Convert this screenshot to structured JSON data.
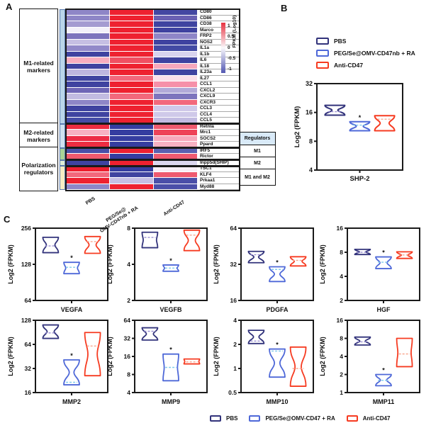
{
  "colors": {
    "navy": "#32337b",
    "blue": "#4e68d8",
    "red": "#f63b21",
    "navy_median": "#9a8fd2",
    "blue_median": "#7fcbec",
    "red_median": "#f9a78f",
    "frame": "#1a1a1a",
    "regulators_header_bg": "#d9eaf8"
  },
  "panel_a": {
    "label": "A",
    "left_boxes": [
      {
        "lines": [
          "M1-related",
          "markers"
        ],
        "row_start": 0,
        "row_end": 19
      },
      {
        "lines": [
          "M2-related",
          "markers"
        ],
        "row_start": 19,
        "row_end": 23
      },
      {
        "lines": [
          "Polarization",
          "regulators"
        ],
        "row_start": 23,
        "row_end": 30
      }
    ],
    "strip_groups": [
      {
        "rows": 19,
        "color": "#b9d5e9"
      },
      {
        "rows": 4,
        "color": "#cfe2f0"
      },
      {
        "rows": 2,
        "color": "#a9d396"
      },
      {
        "rows": 1,
        "color": "#dfeed6"
      },
      {
        "rows": 4,
        "color": "#f6edc3"
      }
    ],
    "col_labels": {
      "c1": "PBS",
      "c2_line1": "PEG/Se@",
      "c2_line2": "OMV-CD47nb + RA",
      "c3": "Anti-CD47"
    },
    "colorbar": {
      "title": "FPKM (Log10)",
      "ticks": [
        "1",
        "0.5",
        "0",
        "-0.5",
        "-1"
      ],
      "top_color": "#e73240",
      "mid_color": "#faf9fc",
      "bottom_color": "#5257b2"
    },
    "regulators_table": {
      "header": "Regulators",
      "rows": [
        "M1",
        "M2",
        "M1 and M2"
      ]
    }
  },
  "panel_b": {
    "label": "B",
    "legend": [
      {
        "label": "PBS",
        "color_key": "navy"
      },
      {
        "label": "PEG/Se@OMV-CD47nb + RA",
        "color_key": "blue"
      },
      {
        "label": "Anti-CD47",
        "color_key": "red"
      }
    ]
  },
  "panel_c": {
    "label": "C",
    "legend": [
      {
        "label": "PBS",
        "color_key": "navy"
      },
      {
        "label": "PEG/Se@OMV-CD47 + RA",
        "color_key": "blue"
      },
      {
        "label": "Anti-CD47",
        "color_key": "red"
      }
    ]
  },
  "chart_data": [
    {
      "id": "heatmap",
      "panel": "A",
      "type": "heatmap",
      "columns": [
        "PBS",
        "PEG/Se@OMV-CD47nb + RA",
        "Anti-CD47"
      ],
      "colorbar_label": "FPKM (Log10)",
      "colorbar_range": [
        1,
        -1
      ],
      "row_groups": [
        "M1-related markers x19",
        "M2-related markers x4",
        "Regulators M1 x2",
        "Regulators M2 x1",
        "Regulators M1 and M2 x4"
      ],
      "rows": [
        {
          "gene": "CD80",
          "colors": [
            "#8e86c7",
            "#ee2130",
            "#4347a2"
          ]
        },
        {
          "gene": "CD86",
          "colors": [
            "#8e86c7",
            "#ee2130",
            "#6a61b3"
          ]
        },
        {
          "gene": "CD38",
          "colors": [
            "#a49bd1",
            "#ee2130",
            "#3f43a0"
          ]
        },
        {
          "gene": "Marco",
          "colors": [
            "#f3f1f9",
            "#ee2130",
            "#3f43a0"
          ]
        },
        {
          "gene": "FRP2",
          "colors": [
            "#7d74bd",
            "#ee2130",
            "#8e86c7"
          ]
        },
        {
          "gene": "NOS2",
          "colors": [
            "#c6bfe3",
            "#ee2130",
            "#3f43a0"
          ]
        },
        {
          "gene": "IL1a",
          "colors": [
            "#9289c9",
            "#ee2130",
            "#434ba4"
          ]
        },
        {
          "gene": "IL1b",
          "colors": [
            "#3f43a0",
            "#ee2130",
            "#d8d3ee"
          ]
        },
        {
          "gene": "IL6",
          "colors": [
            "#f7aebf",
            "#f04f62",
            "#3f43a0"
          ]
        },
        {
          "gene": "IL18",
          "colors": [
            "#3f43a0",
            "#ee2130",
            "#f7a8bc"
          ]
        },
        {
          "gene": "IL23a",
          "colors": [
            "#beb6df",
            "#ee2130",
            "#3f43a0"
          ]
        },
        {
          "gene": "IL27",
          "colors": [
            "#3f43a0",
            "#f2687c",
            "#fbdfe9"
          ]
        },
        {
          "gene": "CCL1",
          "colors": [
            "#3f43a0",
            "#ee2130",
            "#f690a9"
          ]
        },
        {
          "gene": "CXCL2",
          "colors": [
            "#6f66b6",
            "#ee2130",
            "#b2aad8"
          ]
        },
        {
          "gene": "CXCL9",
          "colors": [
            "#c2bbe1",
            "#f2687c",
            "#7d74bd"
          ]
        },
        {
          "gene": "CXCR3",
          "colors": [
            "#8e86c7",
            "#ee2130",
            "#f2687c"
          ]
        },
        {
          "gene": "CCL3",
          "colors": [
            "#3f43a0",
            "#ee2130",
            "#cfc9e9"
          ]
        },
        {
          "gene": "CCL4",
          "colors": [
            "#3f43a0",
            "#ee2130",
            "#cfc9e9"
          ]
        },
        {
          "gene": "CCL5",
          "colors": [
            "#464ca6",
            "#ee2130",
            "#c2bbe1"
          ]
        },
        {
          "gene": "Retnla",
          "colors": [
            "#ee2d41",
            "#353da0",
            "#ef5a6e"
          ]
        },
        {
          "gene": "Mrc1",
          "colors": [
            "#f7b1c2",
            "#353da0",
            "#ee4258"
          ]
        },
        {
          "gene": "SOCS2",
          "colors": [
            "#ed2b45",
            "#353da0",
            "#f7a8bc"
          ]
        },
        {
          "gene": "Ppard",
          "colors": [
            "#ee2d41",
            "#353da0",
            "#f7b1c2"
          ]
        },
        {
          "gene": "IRF5",
          "colors": [
            "#4a4fa8",
            "#ee2130",
            "#5a60b0"
          ]
        },
        {
          "gene": "Rictor",
          "colors": [
            "#ef5a6e",
            "#353da0",
            "#ee5a70"
          ]
        },
        {
          "gene": "Inpp5d(SHIP)",
          "colors": [
            "#3f43a0",
            "#ee2130",
            "#dcd7ef"
          ]
        },
        {
          "gene": "TSC1",
          "colors": [
            "#ee1f2f",
            "#353da0",
            "#f7eff6"
          ]
        },
        {
          "gene": "KLF4",
          "colors": [
            "#f2687c",
            "#3f43a0",
            "#ee5a70"
          ]
        },
        {
          "gene": "Prkaa1",
          "colors": [
            "#ee2130",
            "#c6bfe3",
            "#4a4fa8"
          ]
        },
        {
          "gene": "Myd88",
          "colors": [
            "#8e86c7",
            "#ee2130",
            "#4a4fa8"
          ]
        }
      ]
    },
    {
      "id": "SHP-2",
      "panel": "B",
      "type": "violin",
      "xlabel": "SHP-2",
      "ylabel": "Log2 (FPKM)",
      "ylim": [
        4,
        32
      ],
      "yticks": [
        32,
        16,
        8,
        4
      ],
      "series": [
        {
          "group": "PBS",
          "lo": 15,
          "hi": 19,
          "med": 16.3,
          "waist": 0.3,
          "star": false
        },
        {
          "group": "PEG/Se@OMV-CD47nb + RA",
          "lo": 10.3,
          "hi": 12.8,
          "med": 11.8,
          "waist": 0.35,
          "star": true
        },
        {
          "group": "Anti-CD47",
          "lo": 10.3,
          "hi": 14.8,
          "med": 13.6,
          "waist": 0.45,
          "star": false
        }
      ]
    },
    {
      "id": "VEGFA",
      "panel": "C",
      "type": "violin",
      "xlabel": "VEGFA",
      "ylabel": "Log2 (FPKM)",
      "ylim": [
        64,
        256
      ],
      "yticks": [
        256,
        128,
        64
      ],
      "series": [
        {
          "group": "PBS",
          "lo": 160,
          "hi": 215,
          "med": 182,
          "waist": 0.55,
          "star": false
        },
        {
          "group": "PEG/Se@OMV-CD47 + RA",
          "lo": 107,
          "hi": 133,
          "med": 121,
          "waist": 0.75,
          "star": true
        },
        {
          "group": "Anti-CD47",
          "lo": 158,
          "hi": 218,
          "med": 198,
          "waist": 0.45,
          "star": false
        }
      ]
    },
    {
      "id": "VEGFB",
      "panel": "C",
      "type": "violin",
      "xlabel": "VEGFB",
      "ylabel": "Log2 (FPKM)",
      "ylim": [
        2,
        8
      ],
      "yticks": [
        8,
        4,
        2
      ],
      "series": [
        {
          "group": "PBS",
          "lo": 5.5,
          "hi": 7.4,
          "med": 6.7,
          "waist": 0.85,
          "star": false
        },
        {
          "group": "PEG/Se@OMV-CD47 + RA",
          "lo": 3.5,
          "hi": 3.95,
          "med": 3.72,
          "waist": 0.8,
          "star": true
        },
        {
          "group": "Anti-CD47",
          "lo": 5.2,
          "hi": 7.7,
          "med": 7.0,
          "waist": 0.45,
          "star": false
        }
      ]
    },
    {
      "id": "PDGFA",
      "panel": "C",
      "type": "violin",
      "xlabel": "PDGFA",
      "ylabel": "Log2 (FPKM)",
      "ylim": [
        16,
        64
      ],
      "yticks": [
        64,
        32,
        16
      ],
      "series": [
        {
          "group": "PBS",
          "lo": 33,
          "hi": 41,
          "med": 38.5,
          "waist": 0.3,
          "star": false
        },
        {
          "group": "PEG/Se@OMV-CD47 + RA",
          "lo": 23,
          "hi": 30.5,
          "med": 29,
          "waist": 0.35,
          "star": true
        },
        {
          "group": "Anti-CD47",
          "lo": 31,
          "hi": 37,
          "med": 34.5,
          "waist": 0.5,
          "star": false
        }
      ]
    },
    {
      "id": "HGF",
      "panel": "C",
      "type": "violin",
      "xlabel": "HGF",
      "ylabel": "Log2 (FPKM)",
      "ylim": [
        2,
        16
      ],
      "yticks": [
        16,
        8,
        4,
        2
      ],
      "series": [
        {
          "group": "PBS",
          "lo": 7.5,
          "hi": 8.7,
          "med": 8.0,
          "waist": 0.4,
          "star": false
        },
        {
          "group": "PEG/Se@OMV-CD47 + RA",
          "lo": 5.0,
          "hi": 7.0,
          "med": 6.0,
          "waist": 0.45,
          "star": true
        },
        {
          "group": "Anti-CD47",
          "lo": 6.7,
          "hi": 8.1,
          "med": 7.4,
          "waist": 0.4,
          "star": false
        }
      ]
    },
    {
      "id": "MMP2",
      "panel": "C",
      "type": "violin",
      "xlabel": "MMP2",
      "ylabel": "Log2 (FPKM)",
      "ylim": [
        16,
        128
      ],
      "yticks": [
        128,
        64,
        32,
        16
      ],
      "series": [
        {
          "group": "PBS",
          "lo": 76,
          "hi": 112,
          "med": 89,
          "waist": 0.45,
          "star": false
        },
        {
          "group": "PEG/Se@OMV-CD47 + RA",
          "lo": 20,
          "hi": 41,
          "med": 21.5,
          "waist": 0.3,
          "star": true
        },
        {
          "group": "Anti-CD47",
          "lo": 26,
          "hi": 90,
          "med": 61,
          "waist": 0.6,
          "star": false
        }
      ]
    },
    {
      "id": "MMP9",
      "panel": "C",
      "type": "violin",
      "xlabel": "MMP9",
      "ylabel": "Log2 (FPKM)",
      "ylim": [
        4,
        64
      ],
      "yticks": [
        64,
        32,
        16,
        8,
        4
      ],
      "series": [
        {
          "group": "PBS",
          "lo": 30,
          "hi": 48,
          "med": 42,
          "waist": 0.45,
          "star": false
        },
        {
          "group": "PEG/Se@OMV-CD47 + RA",
          "lo": 6.3,
          "hi": 17.5,
          "med": 10.5,
          "waist": 0.85,
          "star": true
        },
        {
          "group": "Anti-CD47",
          "lo": 12,
          "hi": 14.5,
          "med": 13,
          "waist": 0.9,
          "star": false
        }
      ]
    },
    {
      "id": "MMP10",
      "panel": "C",
      "type": "violin",
      "xlabel": "MMP10",
      "ylabel": "Log2 (FPKM)",
      "ylim": [
        0.5,
        4
      ],
      "yticks": [
        4,
        2,
        1,
        0.5
      ],
      "series": [
        {
          "group": "PBS",
          "lo": 2.05,
          "hi": 3.0,
          "med": 2.2,
          "waist": 0.35,
          "star": false
        },
        {
          "group": "PEG/Se@OMV-CD47 + RA",
          "lo": 0.78,
          "hi": 1.75,
          "med": 1.65,
          "waist": 0.35,
          "star": true
        },
        {
          "group": "Anti-CD47",
          "lo": 0.6,
          "hi": 1.85,
          "med": 1.0,
          "waist": 0.4,
          "star": false
        }
      ]
    },
    {
      "id": "MMP11",
      "panel": "C",
      "type": "violin",
      "xlabel": "MMP11",
      "ylabel": "Log2 (FPKM)",
      "ylim": [
        1,
        16
      ],
      "yticks": [
        16,
        8,
        4,
        2,
        1
      ],
      "series": [
        {
          "group": "PBS",
          "lo": 6.2,
          "hi": 8.4,
          "med": 7.0,
          "waist": 0.35,
          "star": false
        },
        {
          "group": "PEG/Se@OMV-CD47 + RA",
          "lo": 1.3,
          "hi": 2.0,
          "med": 1.6,
          "waist": 0.4,
          "star": true
        },
        {
          "group": "Anti-CD47",
          "lo": 2.7,
          "hi": 8.0,
          "med": 4.4,
          "waist": 0.85,
          "star": false
        }
      ]
    }
  ]
}
